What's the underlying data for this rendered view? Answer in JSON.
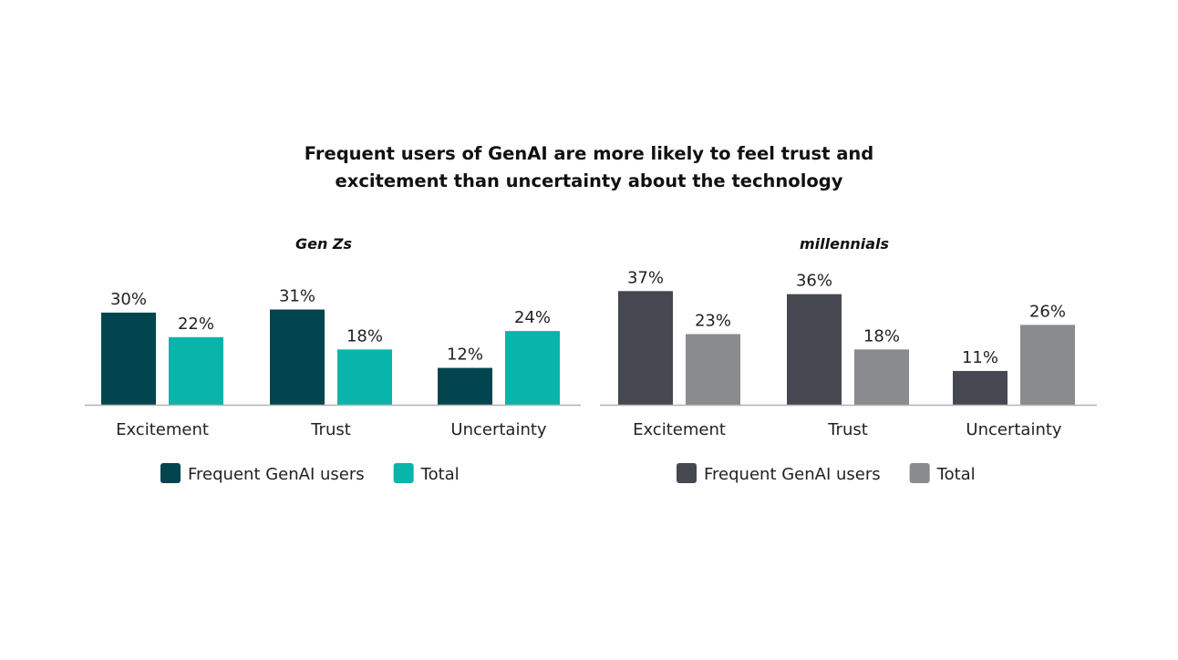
{
  "title_lines": [
    "Frequent users of GenAI are more likely to feel trust and",
    "excitement than uncertainty about the technology"
  ],
  "chart_data": [
    {
      "type": "bar",
      "title": "Gen Zs",
      "categories": [
        "Excitement",
        "Trust",
        "Uncertainty"
      ],
      "series": [
        {
          "name": "Frequent GenAI users",
          "values": [
            30,
            31,
            12
          ],
          "labels": [
            "30%",
            "31%",
            "12%"
          ],
          "color": "#03454f"
        },
        {
          "name": "Total",
          "values": [
            22,
            18,
            24
          ],
          "labels": [
            "22%",
            "18%",
            "24%"
          ],
          "color": "#09b5ab"
        }
      ],
      "ylim": [
        0,
        40
      ],
      "unit": "%",
      "grid": false,
      "legend": "bottom-center"
    },
    {
      "type": "bar",
      "title": "millennials",
      "categories": [
        "Excitement",
        "Trust",
        "Uncertainty"
      ],
      "series": [
        {
          "name": "Frequent GenAI users",
          "values": [
            37,
            36,
            11
          ],
          "labels": [
            "37%",
            "36%",
            "11%"
          ],
          "color": "#454850"
        },
        {
          "name": "Total",
          "values": [
            23,
            18,
            26
          ],
          "labels": [
            "23%",
            "18%",
            "26%"
          ],
          "color": "#898b8e"
        }
      ],
      "ylim": [
        0,
        40
      ],
      "unit": "%",
      "grid": false,
      "legend": "bottom-center"
    }
  ]
}
